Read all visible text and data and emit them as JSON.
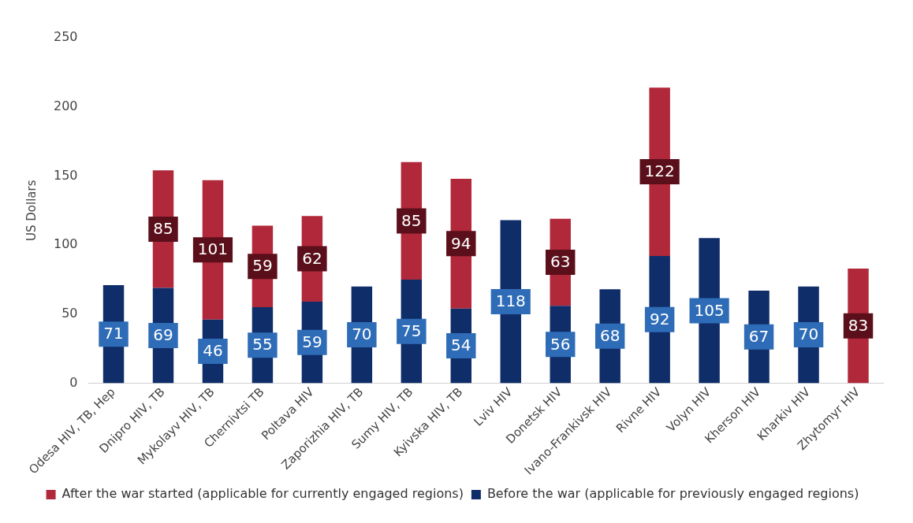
{
  "chart_data": {
    "type": "bar",
    "ylabel": "US Dollars",
    "categories": [
      "Odesa HIV, TB, Hep",
      "Dnipro HIV, TB",
      "Mykolayv HIV, TB",
      "Chernivtsi TB",
      "Poltava HIV",
      "Zaporizhia HIV, TB",
      "Sumy HIV, TB",
      "Kyivska HIV, TB",
      "Lviv HIV",
      "Donetsk HIV",
      "Ivano-Frankivsk HIV",
      "Rivne HIV",
      "Volyn HIV",
      "Kherson HIV",
      "Kharkiv HIV",
      "Zhytomyr HIV"
    ],
    "series": [
      {
        "name": "Before the war (applicable for previously engaged regions)",
        "color": "#0f2d69",
        "values": [
          71,
          69,
          46,
          55,
          59,
          70,
          75,
          54,
          118,
          56,
          68,
          92,
          105,
          67,
          70,
          null
        ]
      },
      {
        "name": "After the war started (applicable for currently engaged regions)",
        "color": "#b0283a",
        "values": [
          null,
          85,
          101,
          59,
          62,
          null,
          85,
          94,
          null,
          63,
          null,
          122,
          null,
          null,
          null,
          83
        ]
      }
    ],
    "stacked": true,
    "data_labels": true,
    "ylim": [
      0,
      250
    ],
    "yticks": [
      0,
      50,
      100,
      150,
      200,
      250
    ],
    "grid": false,
    "legend": "bottom"
  }
}
